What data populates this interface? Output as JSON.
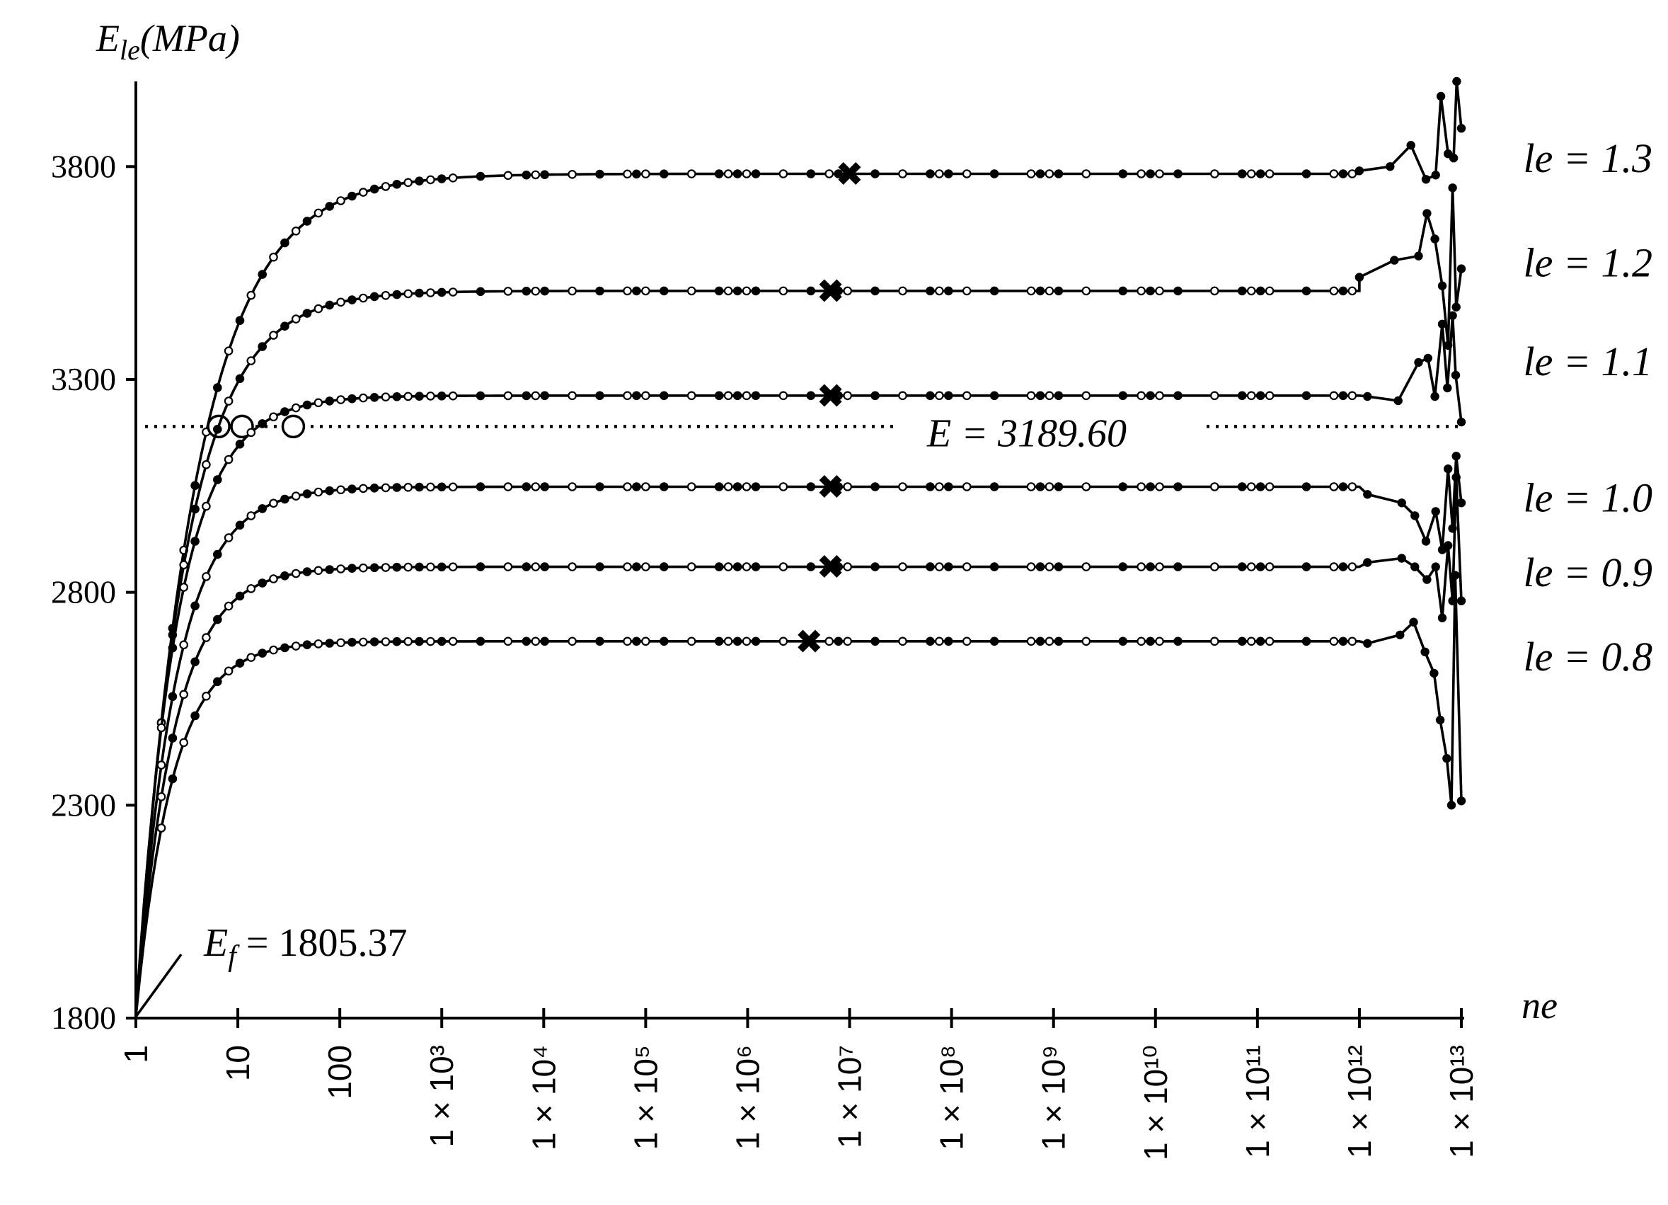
{
  "chart_data": {
    "type": "line",
    "x_scale": "log10",
    "xlim": [
      1,
      10000000000000
    ],
    "ylim": [
      1800,
      4000
    ],
    "ylabel": {
      "base": "E",
      "sub": "le",
      "unit": "(MPa)"
    },
    "xlabel": "ne",
    "x_ticks": [
      {
        "value": 1,
        "label": "1"
      },
      {
        "value": 10,
        "label": "10"
      },
      {
        "value": 100,
        "label": "100"
      },
      {
        "value": 1000,
        "label": "1 × 10³"
      },
      {
        "value": 10000,
        "label": "1 × 10⁴"
      },
      {
        "value": 100000,
        "label": "1 × 10⁵"
      },
      {
        "value": 1000000,
        "label": "1 × 10⁶"
      },
      {
        "value": 10000000,
        "label": "1 × 10⁷"
      },
      {
        "value": 100000000,
        "label": "1 × 10⁸"
      },
      {
        "value": 1000000000,
        "label": "1 × 10⁹"
      },
      {
        "value": 10000000000,
        "label": "1 × 10¹⁰"
      },
      {
        "value": 100000000000,
        "label": "1 × 10¹¹"
      },
      {
        "value": 1000000000000,
        "label": "1 × 10¹²"
      },
      {
        "value": 10000000000000,
        "label": "1 × 10¹³"
      }
    ],
    "y_ticks": [
      1800,
      2300,
      2800,
      3300,
      3800
    ],
    "ef_value": 1805.37,
    "ef_annotation": {
      "base": "E",
      "sub": "f",
      "text": " = 1805.37"
    },
    "reference_line": {
      "value": 3189.6,
      "label": "E = 3189.60"
    },
    "series": [
      {
        "label": "le = 1.3",
        "plateau": 3783,
        "label_y": 3820,
        "tau": 0.48,
        "cross_ne": 10000000,
        "intersect_ne": 6.5,
        "tail": [
          [
            1000000000000.0,
            3790
          ],
          [
            2000000000000.0,
            3800
          ],
          [
            3200000000000.0,
            3850
          ],
          [
            4500000000000.0,
            3770
          ],
          [
            5600000000000.0,
            3780
          ],
          [
            6300000000000.0,
            3965
          ],
          [
            7400000000000.0,
            3830
          ],
          [
            8400000000000.0,
            3820
          ],
          [
            9000000000000.0,
            4000
          ],
          [
            10000000000000.0,
            3890
          ]
        ]
      },
      {
        "label": "le = 1.2",
        "plateau": 3508,
        "label_y": 3575,
        "tau": 0.58,
        "cross_ne": 6500000,
        "intersect_ne": 11,
        "tail": [
          [
            1000000000000.0,
            3540
          ],
          [
            2200000000000.0,
            3580
          ],
          [
            3800000000000.0,
            3590
          ],
          [
            4600000000000.0,
            3690
          ],
          [
            5500000000000.0,
            3630
          ],
          [
            6500000000000.0,
            3520
          ],
          [
            7400000000000.0,
            3380
          ],
          [
            8200000000000.0,
            3750
          ],
          [
            8900000000000.0,
            3470
          ],
          [
            10000000000000.0,
            3560
          ]
        ]
      },
      {
        "label": "le = 1.1",
        "plateau": 3262,
        "label_y": 3343,
        "tau": 0.7,
        "cross_ne": 6500000,
        "intersect_ne": 35,
        "tail": [
          [
            1200000000000.0,
            3260
          ],
          [
            2400000000000.0,
            3250
          ],
          [
            3800000000000.0,
            3340
          ],
          [
            4700000000000.0,
            3350
          ],
          [
            5500000000000.0,
            3260
          ],
          [
            6500000000000.0,
            3430
          ],
          [
            7300000000000.0,
            3280
          ],
          [
            8200000000000.0,
            3450
          ],
          [
            8800000000000.0,
            3310
          ],
          [
            10000000000000.0,
            3200
          ]
        ]
      },
      {
        "label": "le = 1.0",
        "plateau": 3048,
        "label_y": 3023,
        "tau": 0.72,
        "cross_ne": 6500000,
        "intersect_ne": null,
        "tail": [
          [
            1200000000000.0,
            3030
          ],
          [
            2600000000000.0,
            3010
          ],
          [
            3500000000000.0,
            2980
          ],
          [
            4500000000000.0,
            2920
          ],
          [
            5600000000000.0,
            2990
          ],
          [
            6500000000000.0,
            2900
          ],
          [
            7400000000000.0,
            3090
          ],
          [
            8200000000000.0,
            2950
          ],
          [
            8900000000000.0,
            3120
          ],
          [
            10000000000000.0,
            3010
          ]
        ]
      },
      {
        "label": "le = 0.9",
        "plateau": 2860,
        "label_y": 2848,
        "tau": 0.75,
        "cross_ne": 6500000,
        "intersect_ne": null,
        "tail": [
          [
            1200000000000.0,
            2870
          ],
          [
            2600000000000.0,
            2880
          ],
          [
            3500000000000.0,
            2860
          ],
          [
            4600000000000.0,
            2830
          ],
          [
            5600000000000.0,
            2860
          ],
          [
            6500000000000.0,
            2740
          ],
          [
            7400000000000.0,
            2910
          ],
          [
            8200000000000.0,
            2780
          ],
          [
            8900000000000.0,
            3070
          ],
          [
            10000000000000.0,
            2780
          ]
        ]
      },
      {
        "label": "le = 0.8",
        "plateau": 2685,
        "label_y": 2650,
        "tau": 0.78,
        "cross_ne": 4000000,
        "intersect_ne": null,
        "tail": [
          [
            1200000000000.0,
            2680
          ],
          [
            2500000000000.0,
            2700
          ],
          [
            3400000000000.0,
            2730
          ],
          [
            4400000000000.0,
            2660
          ],
          [
            5400000000000.0,
            2610
          ],
          [
            6200000000000.0,
            2500
          ],
          [
            7200000000000.0,
            2410
          ],
          [
            8000000000000.0,
            2300
          ],
          [
            8700000000000.0,
            2840
          ],
          [
            10000000000000.0,
            2310
          ]
        ]
      }
    ]
  }
}
